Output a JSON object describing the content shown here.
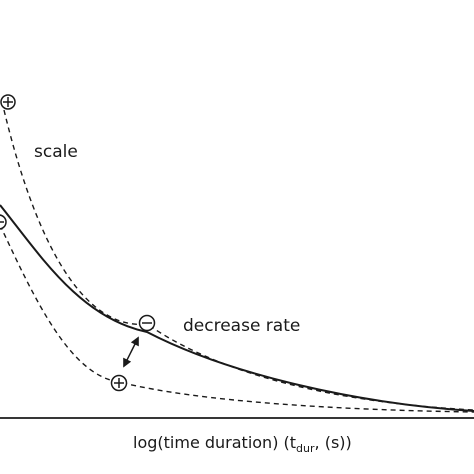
{
  "labels": {
    "scale": "scale",
    "decrease_rate": "decrease rate",
    "xaxis_main": "log(time duration) (t",
    "xaxis_sub": "dur",
    "xaxis_tail": ", (s))"
  },
  "symbols": {
    "plus": "plus",
    "minus": "minus"
  },
  "colors": {
    "ink": "#1a1a1a",
    "background": "#ffffff"
  }
}
